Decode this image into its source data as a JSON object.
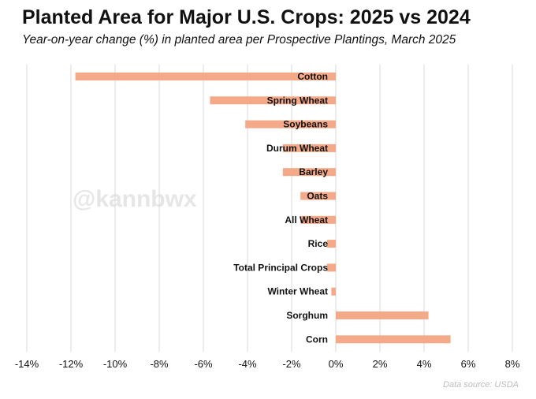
{
  "header": {
    "title": "Planted Area for Major U.S. Crops: 2025 vs 2024",
    "subtitle": "Year-on-year change (%) in planted area per Prospective Plantings, March 2025"
  },
  "watermark": "@kannbwx",
  "source": "Data source: USDA",
  "chart_data": {
    "type": "bar",
    "orientation": "horizontal",
    "title": "Planted Area for Major U.S. Crops: 2025 vs 2024",
    "subtitle": "Year-on-year change (%) in planted area per Prospective Plantings, March 2025",
    "categories": [
      "Cotton",
      "Spring Wheat",
      "Soybeans",
      "Durum Wheat",
      "Barley",
      "Oats",
      "All Wheat",
      "Rice",
      "Total Principal Crops",
      "Winter Wheat",
      "Sorghum",
      "Corn"
    ],
    "values": [
      -11.8,
      -5.7,
      -4.1,
      -2.4,
      -2.4,
      -1.6,
      -1.6,
      -0.4,
      -0.4,
      -0.2,
      4.2,
      5.2
    ],
    "xlim": [
      -14,
      8
    ],
    "xticks": [
      -14,
      -12,
      -10,
      -8,
      -6,
      -4,
      -2,
      0,
      2,
      4,
      6,
      8
    ],
    "xtick_labels": [
      "-14%",
      "-12%",
      "-10%",
      "-8%",
      "-6%",
      "-4%",
      "-2%",
      "0%",
      "2%",
      "4%",
      "6%",
      "8%"
    ],
    "grid": "vertical",
    "bar_color": "#f4a988",
    "grid_color": "#d9d9d9"
  }
}
